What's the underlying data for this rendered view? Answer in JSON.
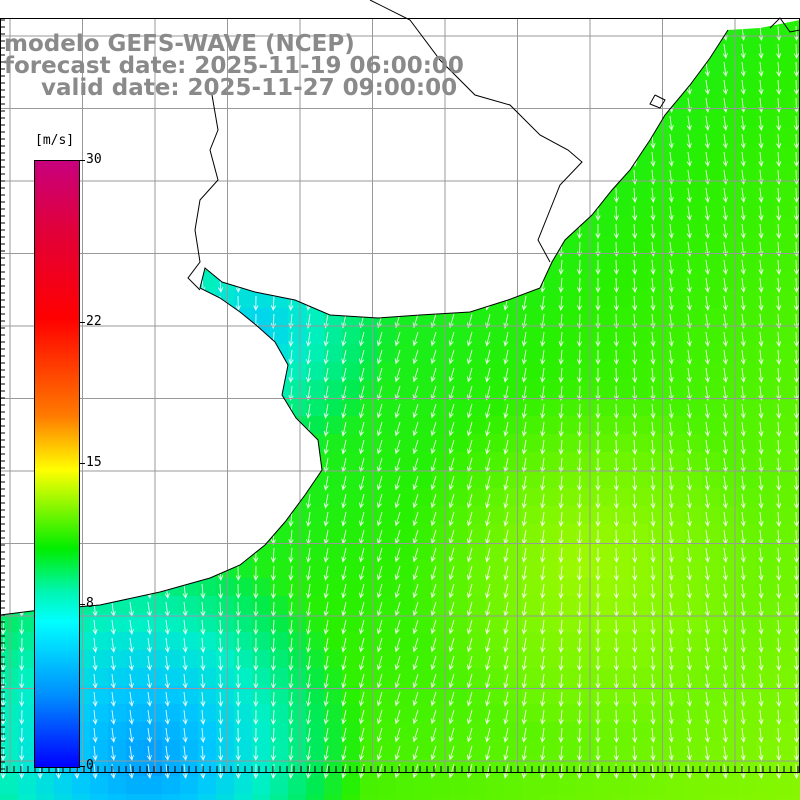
{
  "title": {
    "model": "modelo GEFS-WAVE (NCEP)",
    "forecast": "forecast date: 2025-11-19 06:00:00",
    "valid": "valid date: 2025-11-27 09:00:00"
  },
  "colorbar": {
    "unit": "[m/s]",
    "ticks": [
      {
        "label": "30",
        "value": 30
      },
      {
        "label": "22",
        "value": 22
      },
      {
        "label": "15",
        "value": 15
      },
      {
        "label": "8",
        "value": 8
      },
      {
        "label": "0",
        "value": 0
      }
    ],
    "range": [
      0,
      30
    ]
  },
  "map": {
    "field": "wind speed with direction arrows",
    "arrow_direction": "southward",
    "speed_range_ms": [
      4,
      13
    ],
    "colors": {
      "land": "#ffffff",
      "gridline": "#999999",
      "coastline": "#000000",
      "arrow": "#ffffff"
    }
  }
}
